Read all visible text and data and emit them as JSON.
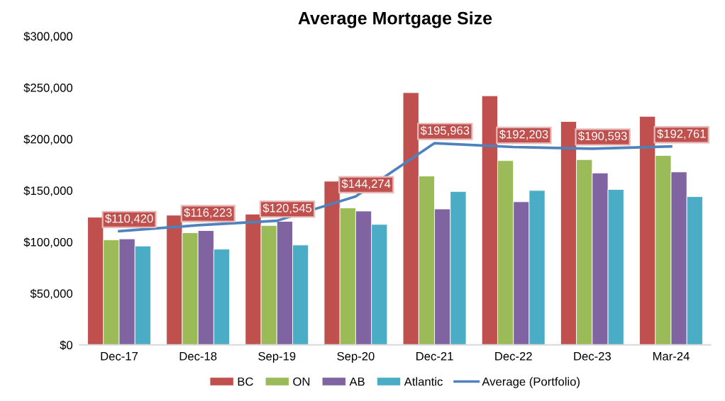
{
  "chart_data": {
    "type": "bar",
    "title": "Average Mortgage Size",
    "categories": [
      "Dec-17",
      "Dec-18",
      "Sep-19",
      "Sep-20",
      "Dec-21",
      "Dec-22",
      "Dec-23",
      "Mar-24"
    ],
    "series": [
      {
        "name": "BC",
        "color": "#c0504d",
        "values": [
          124000,
          126000,
          127000,
          159000,
          245000,
          242000,
          217000,
          222000
        ]
      },
      {
        "name": "ON",
        "color": "#9bbb59",
        "values": [
          102000,
          109000,
          116000,
          133000,
          164000,
          179000,
          180000,
          184000
        ]
      },
      {
        "name": "AB",
        "color": "#8064a2",
        "values": [
          103000,
          111000,
          120000,
          130000,
          132000,
          139000,
          167000,
          168000
        ]
      },
      {
        "name": "Atlantic",
        "color": "#4bacc6",
        "values": [
          96000,
          93000,
          97000,
          117000,
          149000,
          150000,
          151000,
          144000
        ]
      },
      {
        "name": "Average (Portfolio)",
        "type": "line",
        "color": "#4f81bd",
        "values": [
          110420,
          116223,
          120545,
          144274,
          195963,
          192203,
          190593,
          192761
        ],
        "value_labels": [
          "$110,420",
          "$116,223",
          "$120,545",
          "$144,274",
          "$195,963",
          "$192,203",
          "$190,593",
          "$192,761"
        ]
      }
    ],
    "ylim": [
      0,
      300000
    ],
    "yticks": [
      {
        "value": 0,
        "label": "$0"
      },
      {
        "value": 50000,
        "label": "$50,000"
      },
      {
        "value": 100000,
        "label": "$100,000"
      },
      {
        "value": 150000,
        "label": "$150,000"
      },
      {
        "value": 200000,
        "label": "$200,000"
      },
      {
        "value": 250000,
        "label": "$250,000"
      },
      {
        "value": 300000,
        "label": "$300,000"
      }
    ],
    "legend": "bottom",
    "grid": false
  }
}
